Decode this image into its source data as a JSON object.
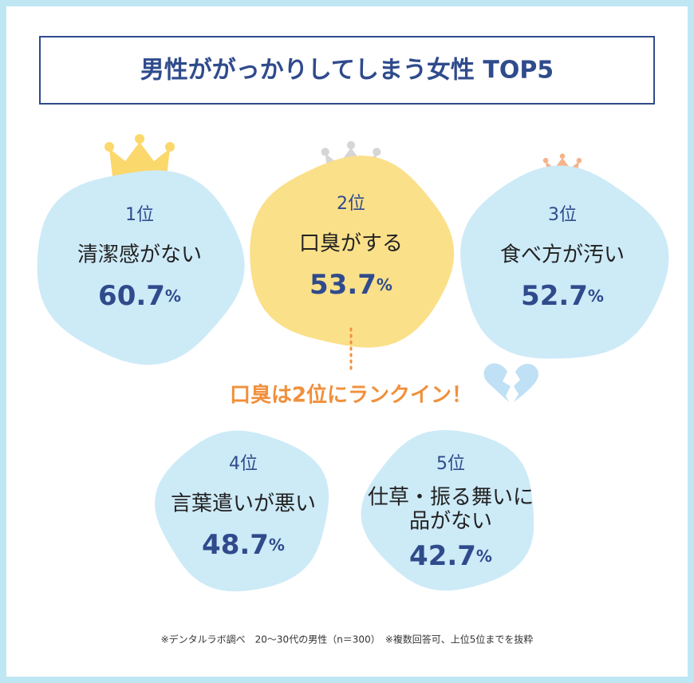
{
  "header": {
    "title": "男性ががっかりしてしまう女性 TOP5"
  },
  "items": [
    {
      "rank": "1位",
      "label": [
        "清潔感がない"
      ],
      "value": 60.7,
      "unit": "%"
    },
    {
      "rank": "2位",
      "label": [
        "口臭がする"
      ],
      "value": 53.7,
      "unit": "%"
    },
    {
      "rank": "3位",
      "label": [
        "食べ方が汚い"
      ],
      "value": 52.7,
      "unit": "%"
    },
    {
      "rank": "4位",
      "label": [
        "言葉遣いが悪い"
      ],
      "value": 48.7,
      "unit": "%"
    },
    {
      "rank": "5位",
      "label": [
        "仕草・振る舞いに",
        "品がない"
      ],
      "value": 42.7,
      "unit": "%"
    }
  ],
  "callout": "口臭は2位にランクイン！",
  "note": "※デンタルラボ調べ　20～30代の男性（n＝300）　※複数回答可、上位5位までを抜粋"
}
